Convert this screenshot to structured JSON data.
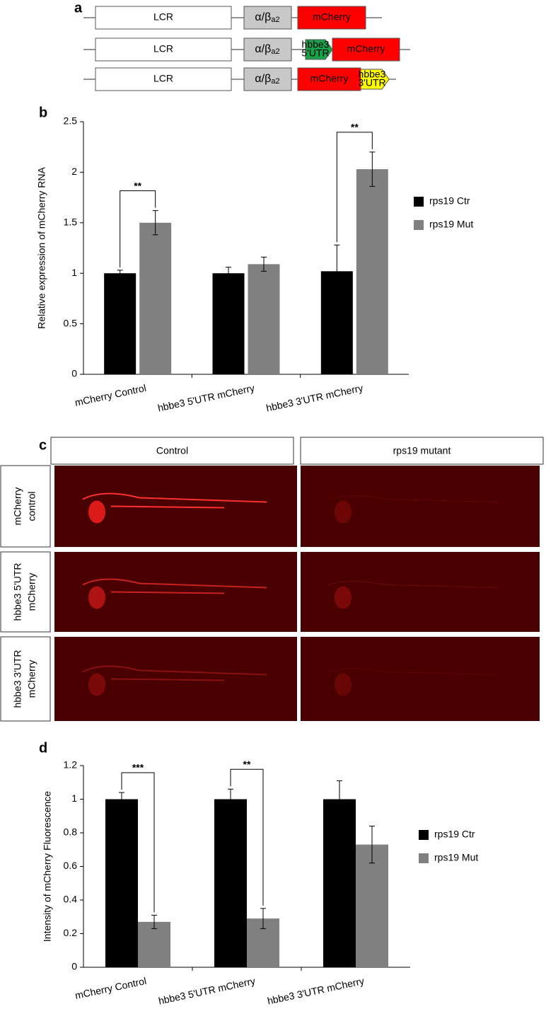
{
  "panel_a": {
    "label": "a",
    "rows": [
      {
        "lcr": "LCR",
        "promoter": "α/β",
        "promoter_sub": "a2",
        "reporter": "mCherry"
      },
      {
        "lcr": "LCR",
        "promoter": "α/β",
        "promoter_sub": "a2",
        "utr": [
          "hbbe3",
          "5'UTR"
        ],
        "reporter": "mCherry"
      },
      {
        "lcr": "LCR",
        "promoter": "α/β",
        "promoter_sub": "a2",
        "reporter": "mCherry",
        "utr": [
          "hbbe3",
          "3'UTR"
        ]
      }
    ]
  },
  "panel_c": {
    "label": "c",
    "columns": [
      "Control",
      "rps19 mutant"
    ],
    "rows": [
      [
        "mCherry",
        "control"
      ],
      [
        "hbbe3 5'UTR",
        "mCherry"
      ],
      [
        "hbbe3 3'UTR",
        "mCherry"
      ]
    ]
  },
  "chart_data": [
    {
      "type": "bar",
      "label": "b",
      "ylabel": "Relative expression of mCherry RNA",
      "categories": [
        "mCherry Control",
        "hbbe3 5'UTR mCherry",
        "hbbe3 3'UTR mCherry"
      ],
      "series": [
        {
          "name": "rps19 Ctr",
          "color": "#000000",
          "values": [
            1,
            1,
            1.02
          ],
          "errors": [
            0.03,
            0.06,
            0.26
          ]
        },
        {
          "name": "rps19 Mut",
          "color": "#808080",
          "values": [
            1.5,
            1.09,
            2.03
          ],
          "errors": [
            0.12,
            0.07,
            0.17
          ]
        }
      ],
      "significance": [
        "**",
        null,
        "**"
      ],
      "ylim": [
        0,
        2.5
      ],
      "yticks": [
        0,
        0.5,
        1,
        1.5,
        2,
        2.5
      ]
    },
    {
      "type": "bar",
      "label": "d",
      "ylabel": "Intensity of mCherry Fluorescence",
      "categories": [
        "mCherry Control",
        "hbbe3 5'UTR mCherry",
        "hbbe3 3'UTR mCherry"
      ],
      "series": [
        {
          "name": "rps19 Ctr",
          "color": "#000000",
          "values": [
            1,
            1,
            1
          ],
          "errors": [
            0.04,
            0.06,
            0.11
          ]
        },
        {
          "name": "rps19 Mut",
          "color": "#808080",
          "values": [
            0.27,
            0.29,
            0.73
          ],
          "errors": [
            0.04,
            0.06,
            0.11
          ]
        }
      ],
      "significance": [
        "***",
        "**",
        null
      ],
      "ylim": [
        0,
        1.2
      ],
      "yticks": [
        0,
        0.2,
        0.4,
        0.6,
        0.8,
        1,
        1.2
      ]
    }
  ]
}
